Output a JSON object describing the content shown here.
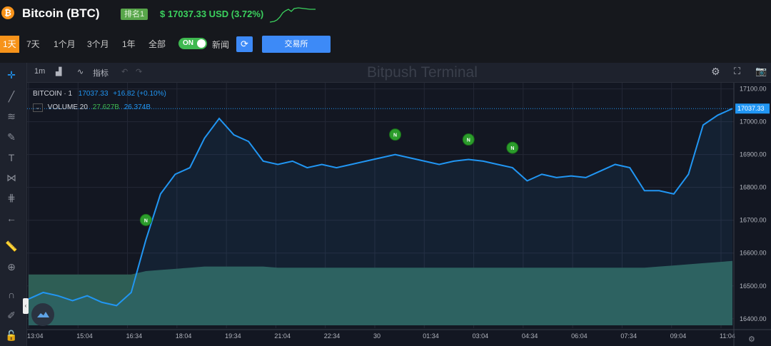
{
  "header": {
    "coin_symbol_glyph": "₿",
    "coin_name": "Bitcoin (BTC)",
    "rank": "排名1",
    "price_line": "$ 17037.33 USD (3.72%)"
  },
  "range_buttons": [
    "1天",
    "7天",
    "1个月",
    "3个月",
    "1年",
    "全部"
  ],
  "toggle": {
    "label": "ON",
    "state": "on"
  },
  "news_label": "新闻",
  "exchange_button": "交易所",
  "chart_toolbar": {
    "interval": "1m",
    "indicators_label": "指标",
    "watermark": "Bitpush Terminal"
  },
  "legend": {
    "symbol": "BITCOIN · 1",
    "price": "17037.33",
    "change": "+16.82 (+0.10%)",
    "volume_label": "VOLUME 20",
    "volume_a": "27.627B",
    "volume_b": "26.374B"
  },
  "last_price_tag": "17037.33",
  "colors": {
    "line": "#2196f3",
    "volume": "#2e5e55",
    "news": "#2b9c2b",
    "accent": "#f7931a"
  },
  "chart_data": {
    "type": "line",
    "x_ticks": [
      "13:04",
      "15:04",
      "16:34",
      "18:04",
      "19:34",
      "21:04",
      "22:34",
      "30",
      "01:34",
      "03:04",
      "04:34",
      "06:04",
      "07:34",
      "09:04",
      "11:04"
    ],
    "y_ticks": [
      "17100.00",
      "17000.00",
      "16900.00",
      "16800.00",
      "16700.00",
      "16600.00",
      "16500.00",
      "16400.00"
    ],
    "ylim": [
      16380,
      17110
    ],
    "price_series": [
      16460,
      16480,
      16470,
      16455,
      16470,
      16450,
      16440,
      16480,
      16640,
      16780,
      16840,
      16860,
      16950,
      17010,
      16960,
      16940,
      16880,
      16870,
      16880,
      16860,
      16870,
      16860,
      16870,
      16880,
      16890,
      16900,
      16890,
      16880,
      16870,
      16880,
      16885,
      16880,
      16870,
      16860,
      16820,
      16840,
      16830,
      16835,
      16830,
      16850,
      16870,
      16860,
      16790,
      16790,
      16780,
      16840,
      16990,
      17020,
      17040
    ],
    "volume_series": [
      0.45,
      0.45,
      0.45,
      0.45,
      0.45,
      0.45,
      0.45,
      0.45,
      0.48,
      0.49,
      0.5,
      0.51,
      0.52,
      0.52,
      0.52,
      0.52,
      0.52,
      0.51,
      0.51,
      0.51,
      0.51,
      0.51,
      0.51,
      0.51,
      0.51,
      0.51,
      0.51,
      0.51,
      0.51,
      0.51,
      0.51,
      0.51,
      0.51,
      0.51,
      0.51,
      0.51,
      0.51,
      0.51,
      0.51,
      0.51,
      0.51,
      0.51,
      0.51,
      0.52,
      0.53,
      0.54,
      0.55,
      0.56,
      0.57
    ],
    "news_markers": [
      {
        "index": 8,
        "label": "N"
      },
      {
        "index": 25,
        "label": "N"
      },
      {
        "index": 30,
        "label": "N"
      },
      {
        "index": 33,
        "label": "N"
      }
    ]
  }
}
